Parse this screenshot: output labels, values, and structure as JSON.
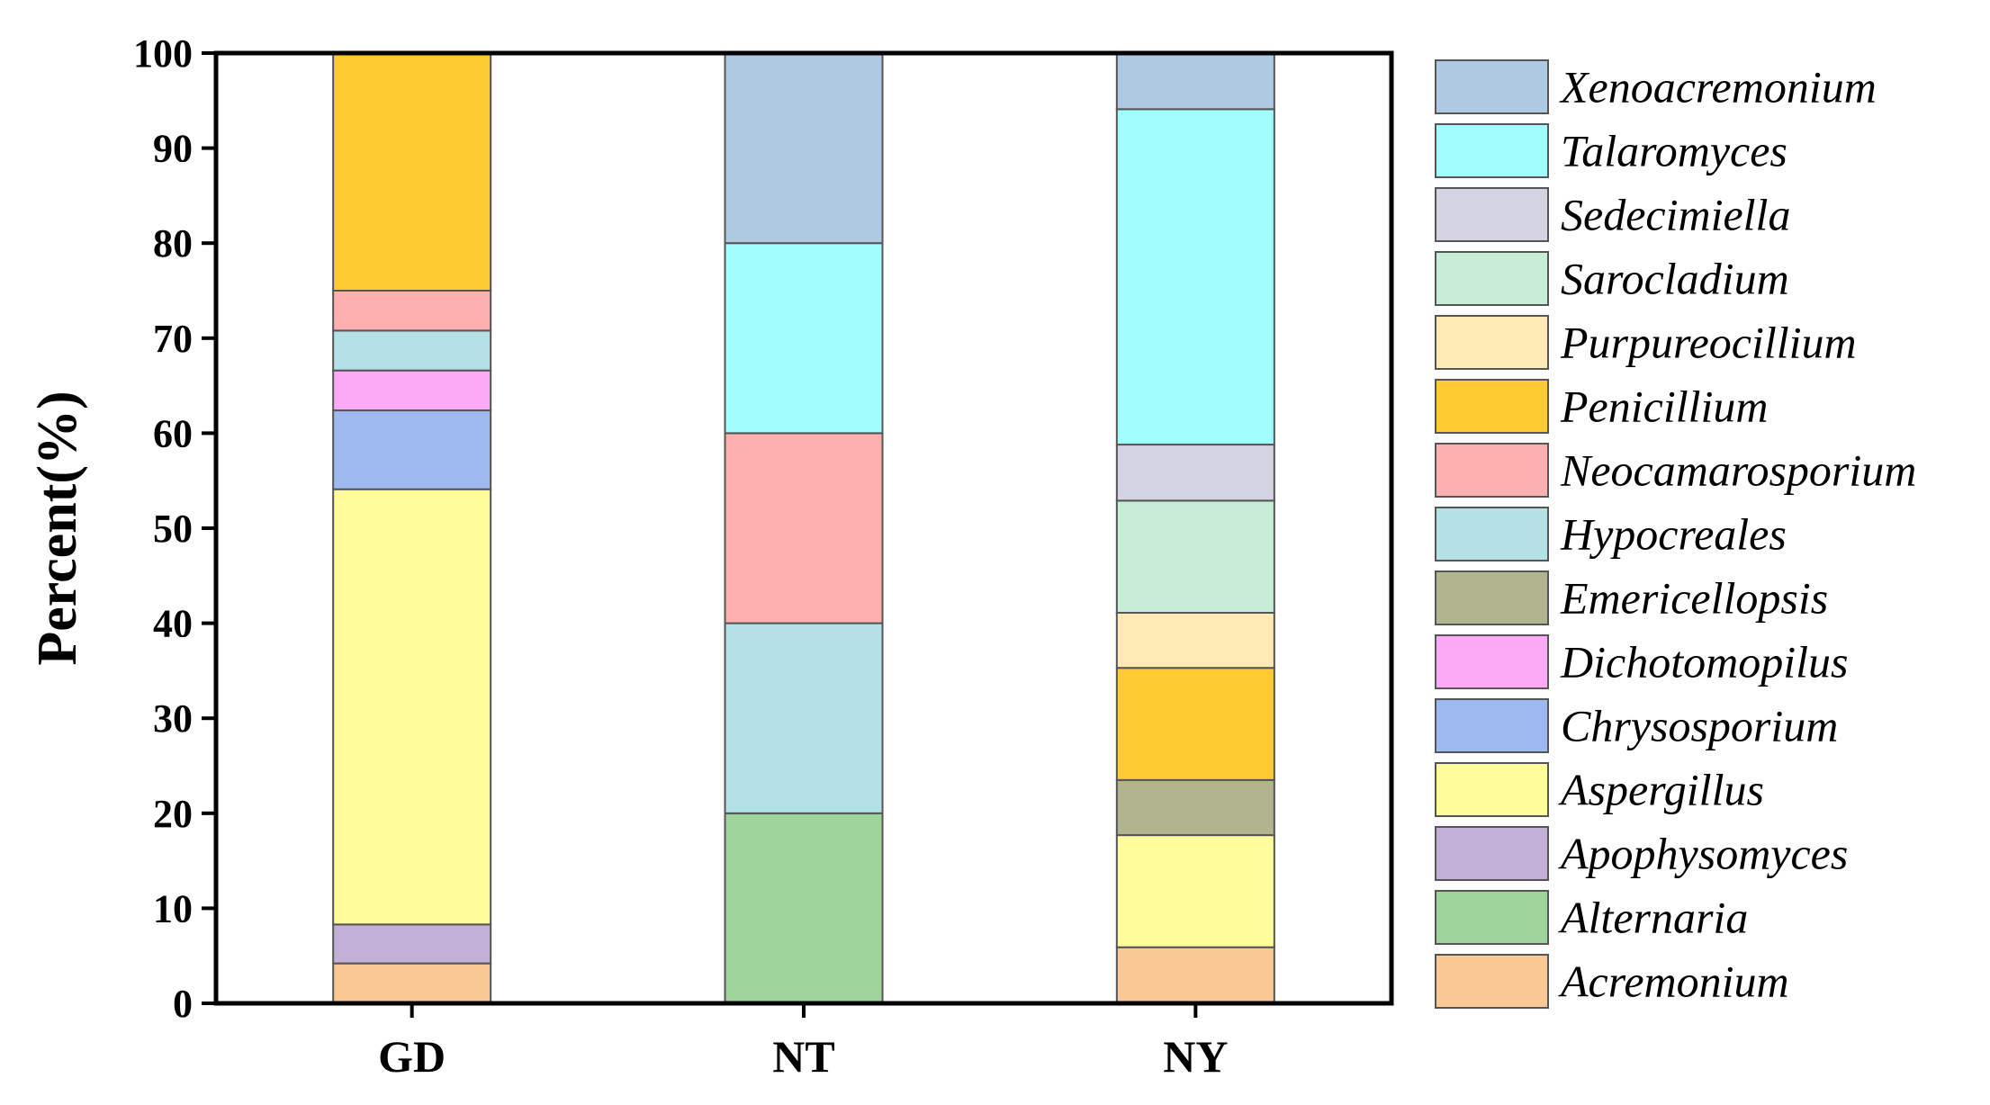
{
  "chart_data": {
    "type": "bar",
    "stacked": true,
    "percent": true,
    "title": "",
    "xlabel": "",
    "ylabel": "Percent(%)",
    "ylim": [
      0,
      100
    ],
    "yticks": [
      0,
      10,
      20,
      30,
      40,
      50,
      60,
      70,
      80,
      90,
      100
    ],
    "categories": [
      "GD",
      "NT",
      "NY"
    ],
    "legend_position": "right",
    "series": [
      {
        "name": "Acremonium",
        "color": "#FAC895",
        "values": [
          4.2,
          0,
          5.9
        ]
      },
      {
        "name": "Alternaria",
        "color": "#9ED49C",
        "values": [
          0,
          20,
          0
        ]
      },
      {
        "name": "Apophysomyces",
        "color": "#C2B0D6",
        "values": [
          4.1,
          0,
          0
        ]
      },
      {
        "name": "Aspergillus",
        "color": "#FFFC9C",
        "values": [
          45.8,
          0,
          11.8
        ]
      },
      {
        "name": "Chrysosporium",
        "color": "#9DB9F0",
        "values": [
          8.3,
          0,
          0
        ]
      },
      {
        "name": "Dichotomopilus",
        "color": "#FDAAF6",
        "values": [
          4.2,
          0,
          0
        ]
      },
      {
        "name": "Emericellopsis",
        "color": "#B0B48F",
        "values": [
          0,
          0,
          5.8
        ]
      },
      {
        "name": "Hypocreales",
        "color": "#B4E1E6",
        "values": [
          4.2,
          20,
          0
        ]
      },
      {
        "name": "Neocamarosporium",
        "color": "#FEB0B0",
        "values": [
          4.2,
          20,
          0
        ]
      },
      {
        "name": "Penicillium",
        "color": "#FFCA32",
        "values": [
          25.0,
          0,
          11.8
        ]
      },
      {
        "name": "Purpureocillium",
        "color": "#FFE9B5",
        "values": [
          0,
          0,
          5.8
        ]
      },
      {
        "name": "Sarocladium",
        "color": "#C8EDD6",
        "values": [
          0,
          0,
          11.8
        ]
      },
      {
        "name": "Sedecimiella",
        "color": "#D3D3E2",
        "values": [
          0,
          0,
          5.9
        ]
      },
      {
        "name": "Talaromyces",
        "color": "#A2FEFE",
        "values": [
          0,
          20,
          35.3
        ]
      },
      {
        "name": "Xenoacremonium",
        "color": "#AFC9E3",
        "values": [
          0,
          20,
          5.9
        ]
      }
    ]
  }
}
